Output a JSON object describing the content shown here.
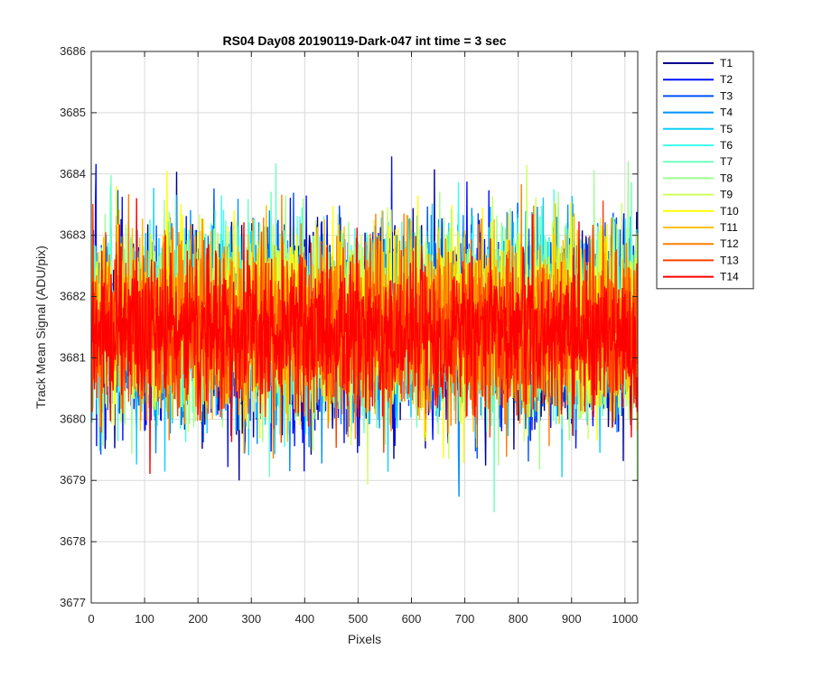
{
  "chart_data": {
    "type": "line",
    "title": "RS04 Day08 20190119-Dark-047 int time = 3 sec",
    "xlabel": "Pixels",
    "ylabel": "Track Mean Signal (ADU/pix)",
    "xlim": [
      0,
      1024
    ],
    "ylim": [
      3677,
      3686
    ],
    "xticks": [
      0,
      100,
      200,
      300,
      400,
      500,
      600,
      700,
      800,
      900,
      1000
    ],
    "yticks": [
      3677,
      3678,
      3679,
      3680,
      3681,
      3682,
      3683,
      3684,
      3685,
      3686
    ],
    "grid": true,
    "legend_position": "outside-top-right",
    "n_points_per_series": 1024,
    "series": [
      {
        "name": "T1",
        "color": "#00008f",
        "mean": 3681.5,
        "spread": 1.3
      },
      {
        "name": "T2",
        "color": "#0010ff",
        "mean": 3681.5,
        "spread": 1.3
      },
      {
        "name": "T3",
        "color": "#0050ff",
        "mean": 3681.5,
        "spread": 1.25
      },
      {
        "name": "T4",
        "color": "#0090ff",
        "mean": 3681.5,
        "spread": 1.25
      },
      {
        "name": "T5",
        "color": "#10cfff",
        "mean": 3681.5,
        "spread": 1.2
      },
      {
        "name": "T6",
        "color": "#40ffef",
        "mean": 3681.6,
        "spread": 1.2
      },
      {
        "name": "T7",
        "color": "#70ffbf",
        "mean": 3681.6,
        "spread": 1.2
      },
      {
        "name": "T8",
        "color": "#9fff8f",
        "mean": 3681.6,
        "spread": 1.2
      },
      {
        "name": "T9",
        "color": "#cfff60",
        "mean": 3681.6,
        "spread": 1.2
      },
      {
        "name": "T10",
        "color": "#ffff00",
        "mean": 3681.6,
        "spread": 1.15
      },
      {
        "name": "T11",
        "color": "#ffc000",
        "mean": 3681.5,
        "spread": 1.15
      },
      {
        "name": "T12",
        "color": "#ff8000",
        "mean": 3681.5,
        "spread": 1.15
      },
      {
        "name": "T13",
        "color": "#ff4000",
        "mean": 3681.4,
        "spread": 1.1
      },
      {
        "name": "T14",
        "color": "#ff0000",
        "mean": 3681.4,
        "spread": 1.0
      }
    ]
  }
}
